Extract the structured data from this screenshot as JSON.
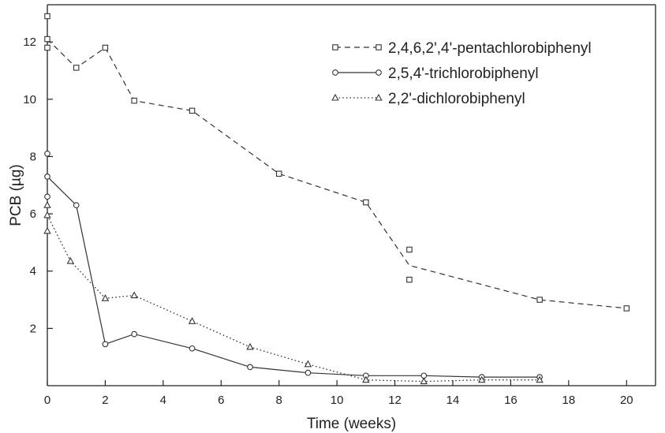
{
  "chart_data": {
    "type": "line",
    "title": "",
    "xlabel": "Time (weeks)",
    "ylabel": "PCB (µg)",
    "xlim": [
      0,
      21
    ],
    "ylim": [
      0,
      13.3
    ],
    "x_ticks": [
      0,
      2,
      4,
      6,
      8,
      10,
      12,
      14,
      16,
      18,
      20
    ],
    "y_ticks": [
      2,
      4,
      6,
      8,
      10,
      12
    ],
    "grid": false,
    "legend_position": "top-right",
    "series": [
      {
        "name": "2,4,6,2',4'-pentachlorobiphenyl",
        "marker": "square",
        "line_style": "dashed",
        "color": "#333333",
        "points": [
          {
            "x": 0,
            "y": 12.9
          },
          {
            "x": 0,
            "y": 12.1
          },
          {
            "x": 0,
            "y": 11.8
          },
          {
            "x": 1,
            "y": 11.1
          },
          {
            "x": 2,
            "y": 11.8
          },
          {
            "x": 3,
            "y": 9.95
          },
          {
            "x": 5,
            "y": 9.6
          },
          {
            "x": 8,
            "y": 7.4
          },
          {
            "x": 11,
            "y": 6.4
          },
          {
            "x": 12.5,
            "y": 4.75
          },
          {
            "x": 12.5,
            "y": 3.7
          },
          {
            "x": 17,
            "y": 3.0
          },
          {
            "x": 20,
            "y": 2.7
          }
        ],
        "line": [
          {
            "x": 0,
            "y": 12.1
          },
          {
            "x": 1,
            "y": 11.1
          },
          {
            "x": 2,
            "y": 11.8
          },
          {
            "x": 3,
            "y": 9.95
          },
          {
            "x": 5,
            "y": 9.6
          },
          {
            "x": 8,
            "y": 7.4
          },
          {
            "x": 11,
            "y": 6.4
          },
          {
            "x": 12.5,
            "y": 4.2
          },
          {
            "x": 17,
            "y": 3.0
          },
          {
            "x": 20,
            "y": 2.7
          }
        ]
      },
      {
        "name": "2,5,4'-trichlorobiphenyl",
        "marker": "circle",
        "line_style": "solid",
        "color": "#333333",
        "points": [
          {
            "x": 0,
            "y": 8.1
          },
          {
            "x": 0,
            "y": 7.3
          },
          {
            "x": 0,
            "y": 6.6
          },
          {
            "x": 1,
            "y": 6.3
          },
          {
            "x": 2,
            "y": 1.45
          },
          {
            "x": 3,
            "y": 1.8
          },
          {
            "x": 5,
            "y": 1.3
          },
          {
            "x": 7,
            "y": 0.65
          },
          {
            "x": 9,
            "y": 0.45
          },
          {
            "x": 11,
            "y": 0.35
          },
          {
            "x": 13,
            "y": 0.35
          },
          {
            "x": 15,
            "y": 0.3
          },
          {
            "x": 17,
            "y": 0.3
          }
        ],
        "line": [
          {
            "x": 0,
            "y": 7.3
          },
          {
            "x": 1,
            "y": 6.3
          },
          {
            "x": 2,
            "y": 1.45
          },
          {
            "x": 3,
            "y": 1.8
          },
          {
            "x": 5,
            "y": 1.3
          },
          {
            "x": 7,
            "y": 0.65
          },
          {
            "x": 9,
            "y": 0.45
          },
          {
            "x": 11,
            "y": 0.35
          },
          {
            "x": 13,
            "y": 0.35
          },
          {
            "x": 15,
            "y": 0.3
          },
          {
            "x": 17,
            "y": 0.3
          }
        ]
      },
      {
        "name": "2,2'-dichlorobiphenyl",
        "marker": "triangle",
        "line_style": "dotted",
        "color": "#333333",
        "points": [
          {
            "x": 0,
            "y": 6.3
          },
          {
            "x": 0,
            "y": 5.95
          },
          {
            "x": 0,
            "y": 5.4
          },
          {
            "x": 0.8,
            "y": 4.35
          },
          {
            "x": 2,
            "y": 3.05
          },
          {
            "x": 3,
            "y": 3.15
          },
          {
            "x": 5,
            "y": 2.25
          },
          {
            "x": 7,
            "y": 1.35
          },
          {
            "x": 9,
            "y": 0.75
          },
          {
            "x": 11,
            "y": 0.2
          },
          {
            "x": 13,
            "y": 0.15
          },
          {
            "x": 15,
            "y": 0.2
          },
          {
            "x": 17,
            "y": 0.2
          }
        ],
        "line": [
          {
            "x": 0,
            "y": 5.95
          },
          {
            "x": 0.8,
            "y": 4.35
          },
          {
            "x": 2,
            "y": 3.05
          },
          {
            "x": 3,
            "y": 3.15
          },
          {
            "x": 5,
            "y": 2.25
          },
          {
            "x": 7,
            "y": 1.35
          },
          {
            "x": 9,
            "y": 0.75
          },
          {
            "x": 11,
            "y": 0.2
          },
          {
            "x": 13,
            "y": 0.15
          },
          {
            "x": 15,
            "y": 0.2
          },
          {
            "x": 17,
            "y": 0.2
          }
        ]
      }
    ]
  }
}
